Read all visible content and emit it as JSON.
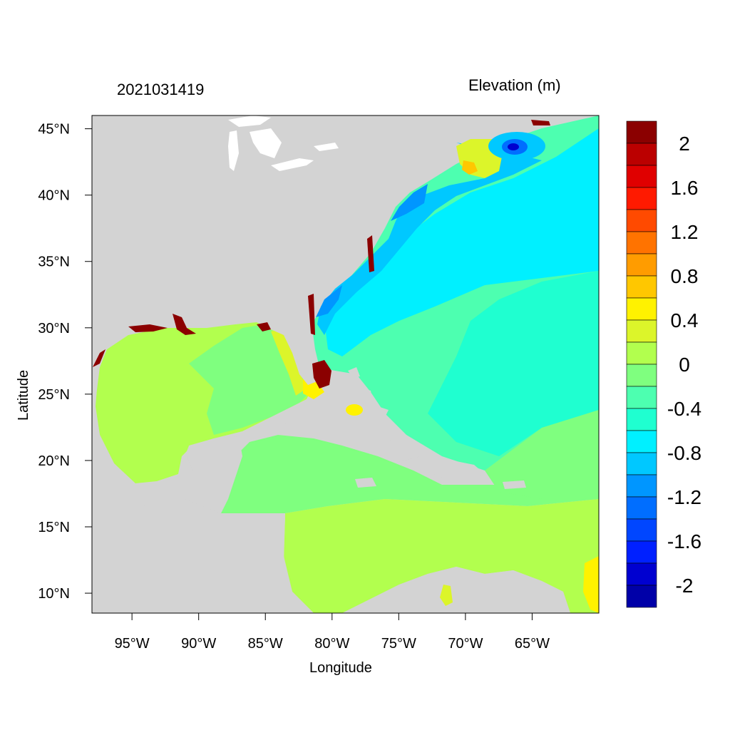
{
  "header": {
    "timestamp": "2021031419",
    "variable_label": "Elevation (m)"
  },
  "axes": {
    "xlabel": "Longitude",
    "ylabel": "Latitude",
    "x_ticks": [
      "95°W",
      "90°W",
      "85°W",
      "80°W",
      "75°W",
      "70°W",
      "65°W"
    ],
    "y_ticks": [
      "45°N",
      "40°N",
      "35°N",
      "30°N",
      "25°N",
      "20°N",
      "15°N",
      "10°N"
    ],
    "lon_range": [
      -98,
      -60
    ],
    "lat_range": [
      8.5,
      46
    ]
  },
  "colorbar": {
    "labels": [
      "2",
      "1.6",
      "1.2",
      "0.8",
      "0.4",
      "0",
      "-0.4",
      "-0.8",
      "-1.2",
      "-1.6",
      "-2"
    ],
    "colors": [
      "#8b0000",
      "#bb0000",
      "#e00000",
      "#ff1a00",
      "#ff4a00",
      "#ff7300",
      "#ff9c00",
      "#ffc700",
      "#fff200",
      "#dcf52a",
      "#b2ff4e",
      "#7fff7f",
      "#4dffb0",
      "#1fffd0",
      "#00f0ff",
      "#00c8ff",
      "#0096ff",
      "#006eff",
      "#0046ff",
      "#0020ff",
      "#0000d0",
      "#0000a8"
    ]
  },
  "map": {
    "land_color": "#d3d3d3",
    "water_color": "#ffffff"
  },
  "chart_data": {
    "type": "heatmap",
    "title": "2021031419",
    "subtitle": "Elevation (m)",
    "xlabel": "Longitude",
    "ylabel": "Latitude",
    "xlim": [
      -98,
      -60
    ],
    "ylim": [
      8.5,
      46
    ],
    "colorbar_range": [
      -2,
      2
    ]
  }
}
